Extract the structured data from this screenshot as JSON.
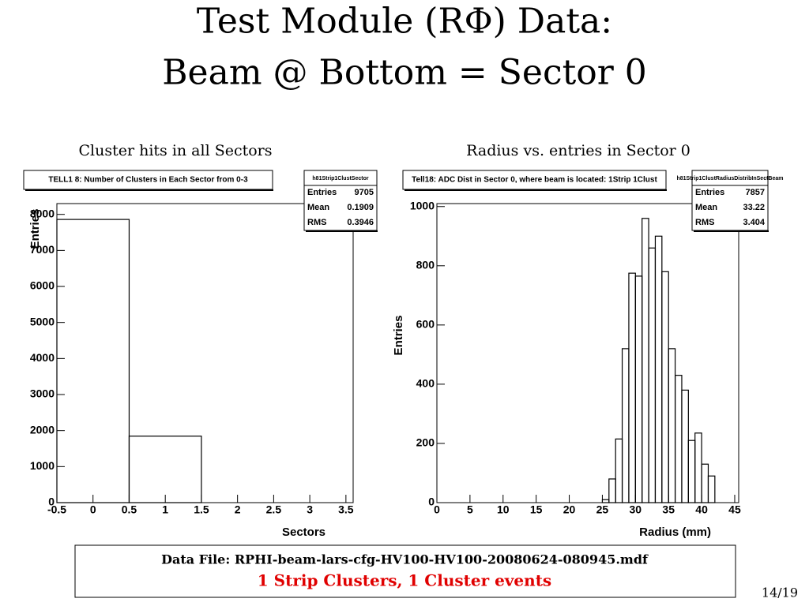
{
  "slide": {
    "title_line1": "Test Module (RΦ) Data:",
    "title_line2": "Beam @ Bottom = Sector 0",
    "data_file": "Data File: RPHI-beam-lars-cfg-HV100-HV100-20080624-080945.mdf",
    "event_note": "1 Strip Clusters, 1 Cluster events",
    "page_number": "14/19"
  },
  "chart_data": [
    {
      "type": "histogram",
      "heading": "Cluster hits in all Sectors",
      "title": "TELL1 8: Number of Clusters in Each Sector from 0-3",
      "stats": {
        "name": "h81Strip1ClustSector",
        "rows": [
          {
            "label": "Entries",
            "value": 9705
          },
          {
            "label": "Mean",
            "value": 0.1909
          },
          {
            "label": "RMS",
            "value": 0.3946
          }
        ]
      },
      "x_label": "Sectors",
      "y_label": "Entries",
      "bins": [
        -0.5,
        0.5,
        1.5,
        2.5,
        3.5
      ],
      "counts": [
        7860,
        1845,
        0,
        0
      ],
      "xlim": [
        -0.5,
        3.6
      ],
      "ylim": [
        0,
        8300
      ],
      "xticks": [
        -0.5,
        0,
        0.5,
        1,
        1.5,
        2,
        2.5,
        3,
        3.5
      ],
      "yticks": [
        0,
        1000,
        2000,
        3000,
        4000,
        5000,
        6000,
        7000,
        8000
      ],
      "color": "#000000"
    },
    {
      "type": "histogram",
      "heading": "Radius vs. entries in Sector 0",
      "title": "Tell18: ADC Dist in Sector 0, where beam is located: 1Strip 1Clust",
      "stats": {
        "name": "h81Strip1ClustRadiusDistribInSectBeam",
        "rows": [
          {
            "label": "Entries",
            "value": 7857
          },
          {
            "label": "Mean",
            "value": 33.22
          },
          {
            "label": "RMS",
            "value": 3.404
          }
        ]
      },
      "x_label": "Radius (mm)",
      "y_label": "Entries",
      "bins": [
        25,
        26,
        27,
        28,
        29,
        30,
        31,
        32,
        33,
        34,
        35,
        36,
        37,
        38,
        39,
        40,
        41,
        42
      ],
      "counts": [
        10,
        80,
        215,
        520,
        775,
        765,
        960,
        860,
        900,
        780,
        520,
        430,
        380,
        210,
        235,
        130,
        90
      ],
      "xlim": [
        0,
        45.6
      ],
      "ylim": [
        0,
        1010
      ],
      "xticks": [
        0,
        5,
        10,
        15,
        20,
        25,
        30,
        35,
        40,
        45
      ],
      "yticks": [
        0,
        200,
        400,
        600,
        800,
        1000
      ],
      "color": "#000000"
    }
  ]
}
